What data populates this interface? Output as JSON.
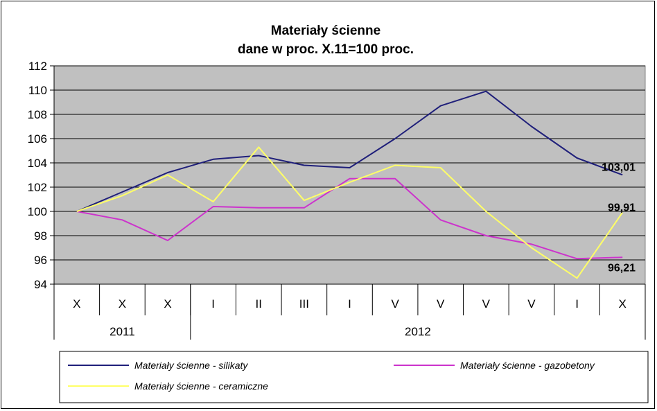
{
  "chart_data": {
    "type": "line",
    "title": "Materiały ścienne",
    "subtitle": "dane w proc. X.11=100 proc.",
    "categories": [
      "X",
      "X",
      "X",
      "I",
      "II",
      "III",
      "I",
      "V",
      "V",
      "V",
      "V",
      "I",
      "X"
    ],
    "year_groups": [
      {
        "label": "2011",
        "count": 3
      },
      {
        "label": "2012",
        "count": 10
      }
    ],
    "ylim": [
      94,
      112
    ],
    "yticks": [
      94,
      96,
      98,
      100,
      102,
      104,
      106,
      108,
      110,
      112
    ],
    "grid": true,
    "legend_position": "bottom",
    "series": [
      {
        "name": "Materiały ścienne - silikaty",
        "color": "#1f1f7a",
        "values": [
          100,
          101.6,
          103.2,
          104.3,
          104.6,
          103.8,
          103.6,
          106.0,
          108.7,
          109.9,
          107.0,
          104.4,
          103.01
        ],
        "end_label": "103,01"
      },
      {
        "name": "Materiały ścienne - gazobetony",
        "color": "#cc33cc",
        "values": [
          100,
          99.3,
          97.6,
          100.4,
          100.3,
          100.3,
          102.7,
          102.7,
          99.3,
          98.0,
          97.3,
          96.1,
          96.21
        ],
        "end_label": "96,21"
      },
      {
        "name": "Materiały ścienne - ceramiczne",
        "color": "#ffff66",
        "values": [
          100,
          101.3,
          103.0,
          100.8,
          105.3,
          100.9,
          102.4,
          103.8,
          103.6,
          100.0,
          97.0,
          94.5,
          99.91
        ],
        "end_label": "99,91"
      }
    ]
  }
}
